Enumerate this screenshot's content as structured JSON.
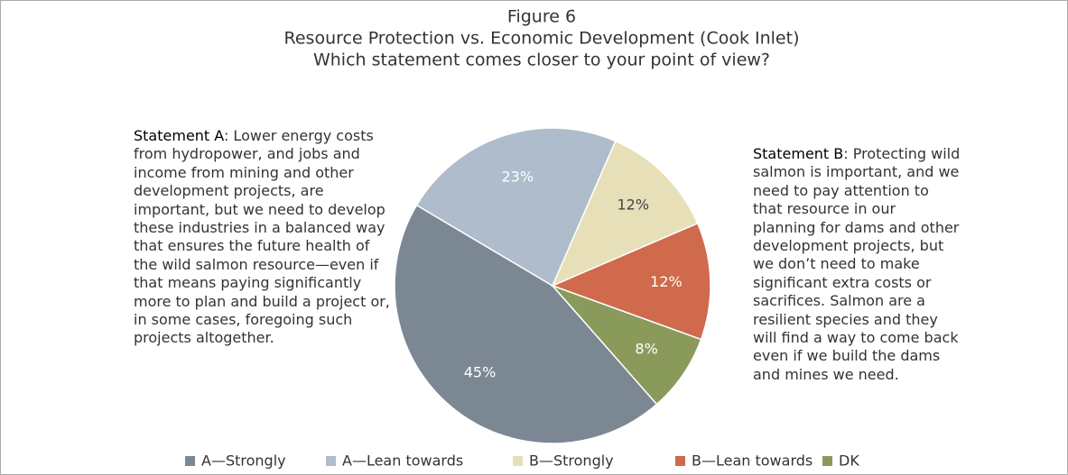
{
  "chart_data": {
    "type": "pie",
    "title": "Figure 6",
    "subtitle": [
      "Resource Protection vs. Economic Development (Cook Inlet)",
      "Which statement comes closer to your point of view?"
    ],
    "statement_a": {
      "label": "Statement A",
      "text": ": Lower energy costs from hydropower, and jobs and income from mining and other development projects, are important, but we need to develop these industries in a balanced way that ensures the future health of the wild salmon resource—even if that means paying significantly more to plan and build a project or, in some cases, foregoing such projects altogether."
    },
    "statement_b": {
      "label": "Statement B",
      "text": ":  Protecting wild salmon is important, and we need to pay attention to that resource in our planning for dams and other development projects, but we don’t need to make significant extra costs or sacrifices.  Salmon are a resilient species and they will find a way to come back even if we build the dams and mines we need."
    },
    "categories": [
      "A—Strongly",
      "A—Lean towards",
      "B—Strongly",
      "B—Lean towards",
      "DK"
    ],
    "values": [
      45,
      23,
      12,
      12,
      8
    ],
    "value_labels": [
      "45%",
      "23%",
      "12%",
      "12%",
      "8%"
    ],
    "colors": [
      "#7b8793",
      "#aebccb",
      "#e6dfb8",
      "#cf6a4c",
      "#8a9a5b"
    ]
  }
}
